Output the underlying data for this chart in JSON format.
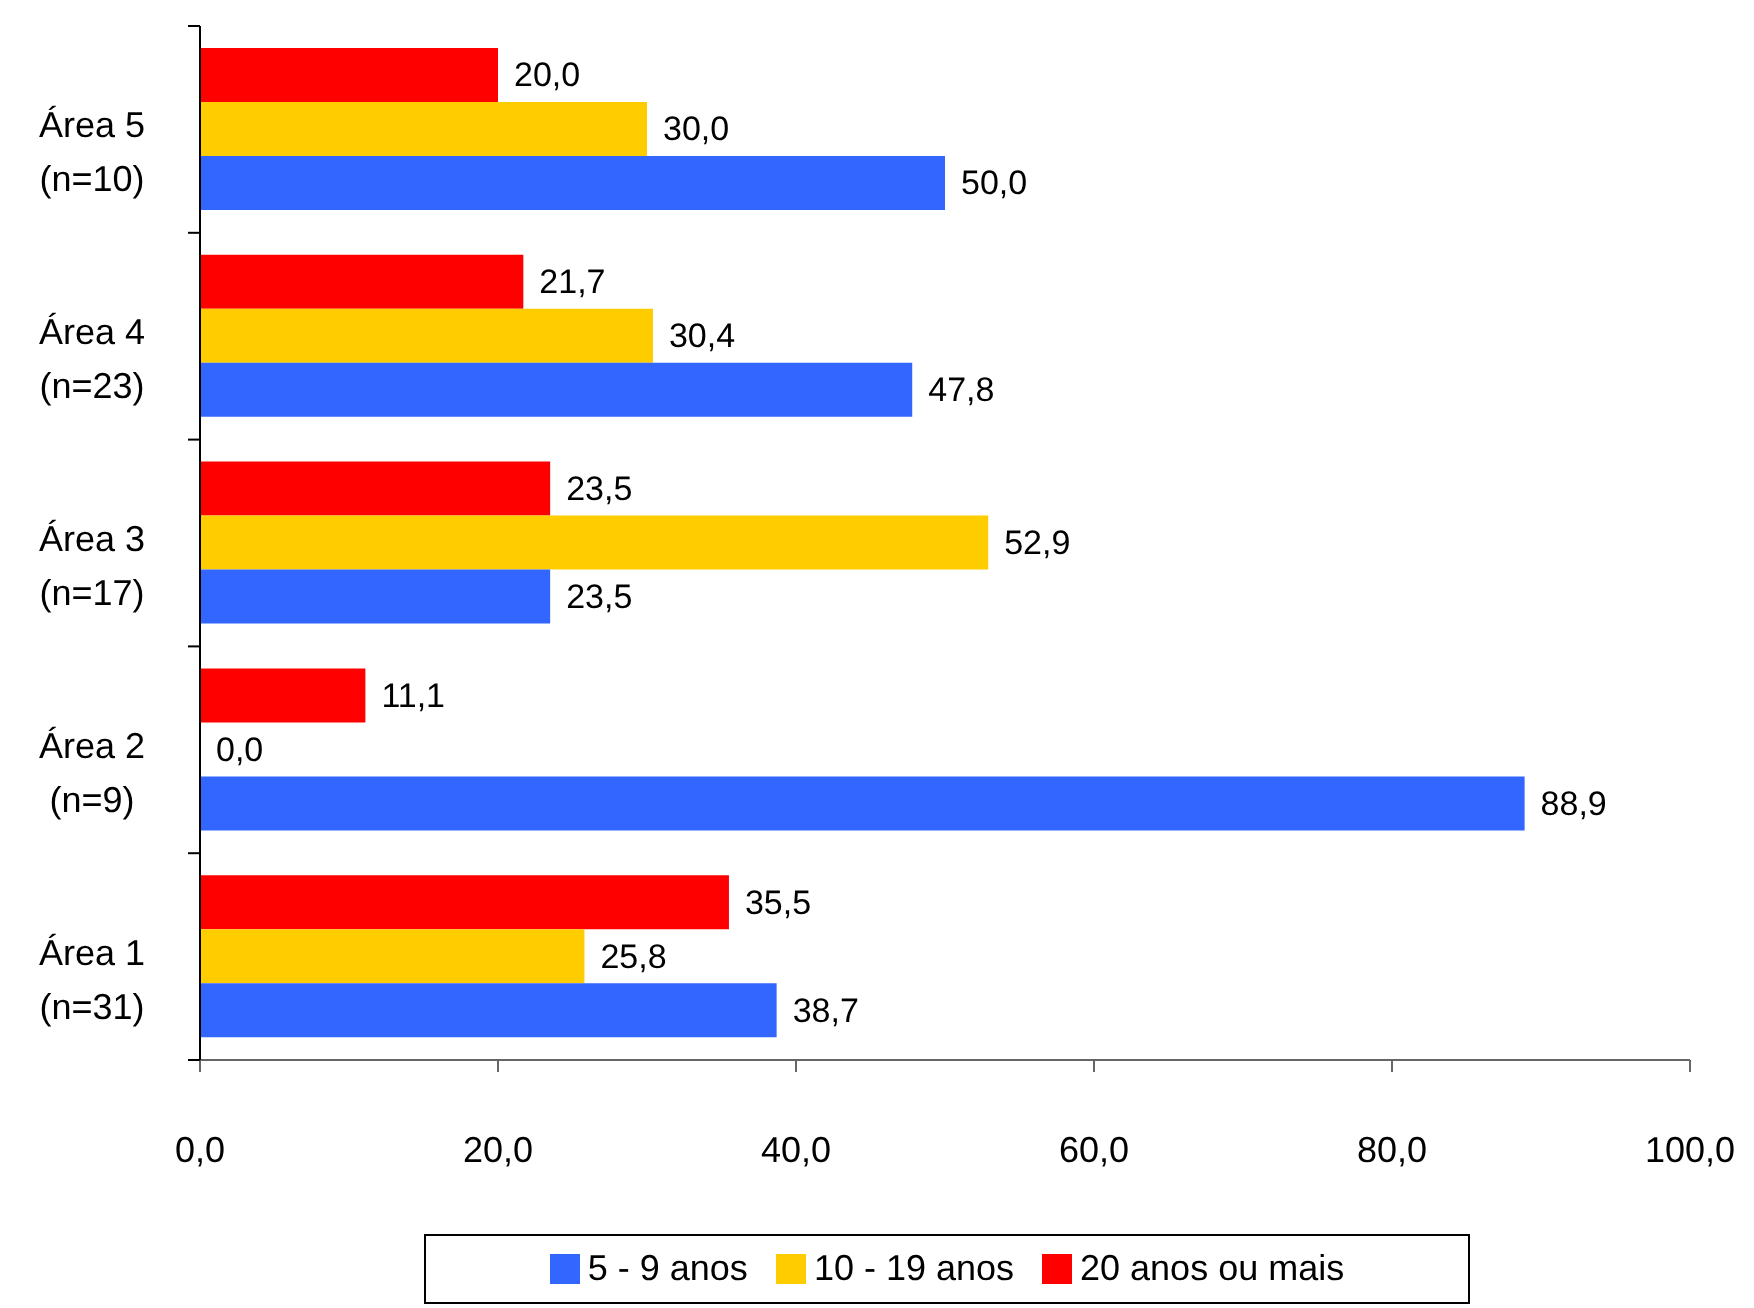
{
  "chart_data": {
    "type": "bar",
    "orientation": "horizontal",
    "categories": [
      "Área 5\n(n=10)",
      "Área 4\n(n=23)",
      "Área 3\n(n=17)",
      "Área 2\n(n=9)",
      "Área 1\n(n=31)"
    ],
    "series": [
      {
        "name": "5 - 9 anos",
        "color": "#3366ff",
        "values": [
          50.0,
          47.8,
          23.5,
          88.9,
          38.7
        ],
        "value_labels": [
          "50,0",
          "47,8",
          "23,5",
          "88,9",
          "38,7"
        ]
      },
      {
        "name": "10 - 19 anos",
        "color": "#ffcc00",
        "values": [
          30.0,
          30.4,
          52.9,
          0.0,
          25.8
        ],
        "value_labels": [
          "30,0",
          "30,4",
          "52,9",
          "0,0",
          "25,8"
        ]
      },
      {
        "name": "20 anos ou mais",
        "color": "#ff0000",
        "values": [
          20.0,
          21.7,
          23.5,
          11.1,
          35.5
        ],
        "value_labels": [
          "20,0",
          "21,7",
          "23,5",
          "11,1",
          "35,5"
        ]
      }
    ],
    "xlim": [
      0,
      100
    ],
    "xticks": [
      {
        "value": 0,
        "label": "0,0"
      },
      {
        "value": 20,
        "label": "20,0"
      },
      {
        "value": 40,
        "label": "40,0"
      },
      {
        "value": 60,
        "label": "60,0"
      },
      {
        "value": 80,
        "label": "80,0"
      },
      {
        "value": 100,
        "label": "100,0"
      }
    ],
    "legend": "bottom"
  }
}
